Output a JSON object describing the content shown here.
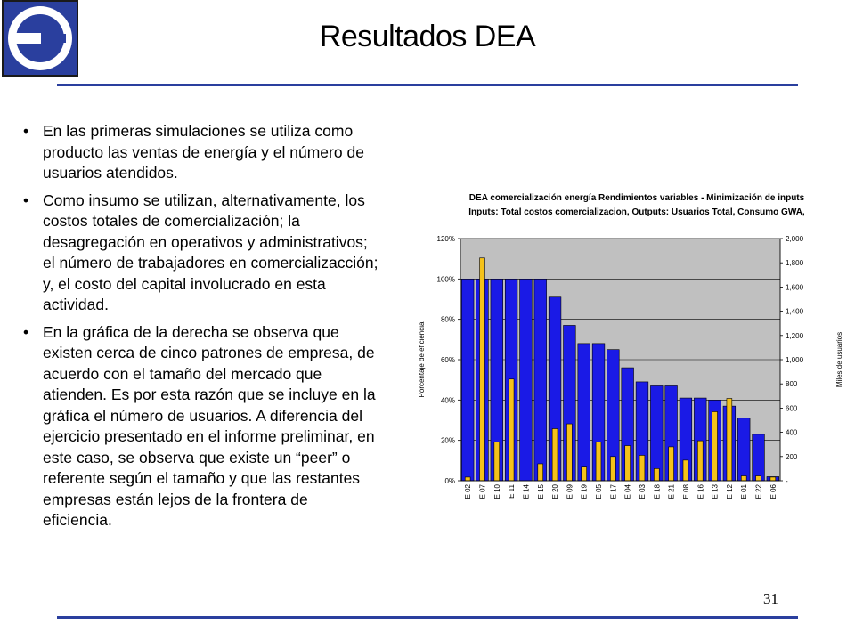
{
  "slide": {
    "title": "Resultados DEA",
    "page_number": "31",
    "brand_color": "#2a3f9e"
  },
  "bullets": [
    "En las primeras simulaciones se utiliza como producto las ventas de energía y el número de usuarios atendidos.",
    "Como insumo se utilizan, alternativamente, los costos totales de comercialización; la desagregación en operativos y administrativos; el número de trabajadores en comercializacción; y, el costo del capital involucrado en esta actividad.",
    "En la gráfica de la derecha se observa que existen cerca de cinco patrones de empresa, de acuerdo con el tamaño del mercado que atienden. Es por esta razón que se incluye en la gráfica el número de usuarios. A diferencia del ejercicio presentado en el informe preliminar, en este caso, se observa que existe un “peer” o referente según el tamaño y que las restantes empresas están lejos de la frontera de eficiencia."
  ],
  "chart_data": {
    "type": "bar",
    "title": "DEA comercialización energía Rendimientos variables - Minimización de inputs",
    "subtitle": "Inputs: Total costos comercializacion, Outputs: Usuarios Total, Consumo GWA,",
    "ylabel": "Porcentaje de eficiencia",
    "y2label": "Miles de usuarios",
    "ylim": [
      0,
      1.2
    ],
    "y2lim": [
      0,
      2000
    ],
    "yticks": [
      "0%",
      "20%",
      "40%",
      "60%",
      "80%",
      "100%",
      "120%"
    ],
    "y2ticks": [
      "-",
      "200",
      "400",
      "600",
      "800",
      "1,000",
      "1,200",
      "1,400",
      "1,600",
      "1,800",
      "2,000"
    ],
    "categories": [
      "E 02",
      "E 07",
      "E 10",
      "E 11",
      "E 14",
      "E 15",
      "E 20",
      "E 09",
      "E 19",
      "E 05",
      "E 17",
      "E 04",
      "E 03",
      "E 18",
      "E 21",
      "E 08",
      "E 16",
      "E 13",
      "E 12",
      "E 01",
      "E 22",
      "E 06"
    ],
    "series": [
      {
        "axis": "left",
        "color": "#1a1ae6",
        "values": [
          1.0,
          1.0,
          1.0,
          1.0,
          1.0,
          1.0,
          0.91,
          0.77,
          0.68,
          0.68,
          0.65,
          0.56,
          0.49,
          0.47,
          0.47,
          0.41,
          0.41,
          0.4,
          0.37,
          0.31,
          0.23,
          0.02
        ]
      },
      {
        "axis": "right",
        "color": "#f5c21a",
        "values": [
          30,
          1840,
          320,
          840,
          0,
          140,
          430,
          470,
          120,
          320,
          200,
          290,
          210,
          100,
          280,
          170,
          330,
          570,
          680,
          40,
          40,
          30
        ]
      }
    ],
    "plot_bg": "#c0c0c0",
    "grid": true
  }
}
